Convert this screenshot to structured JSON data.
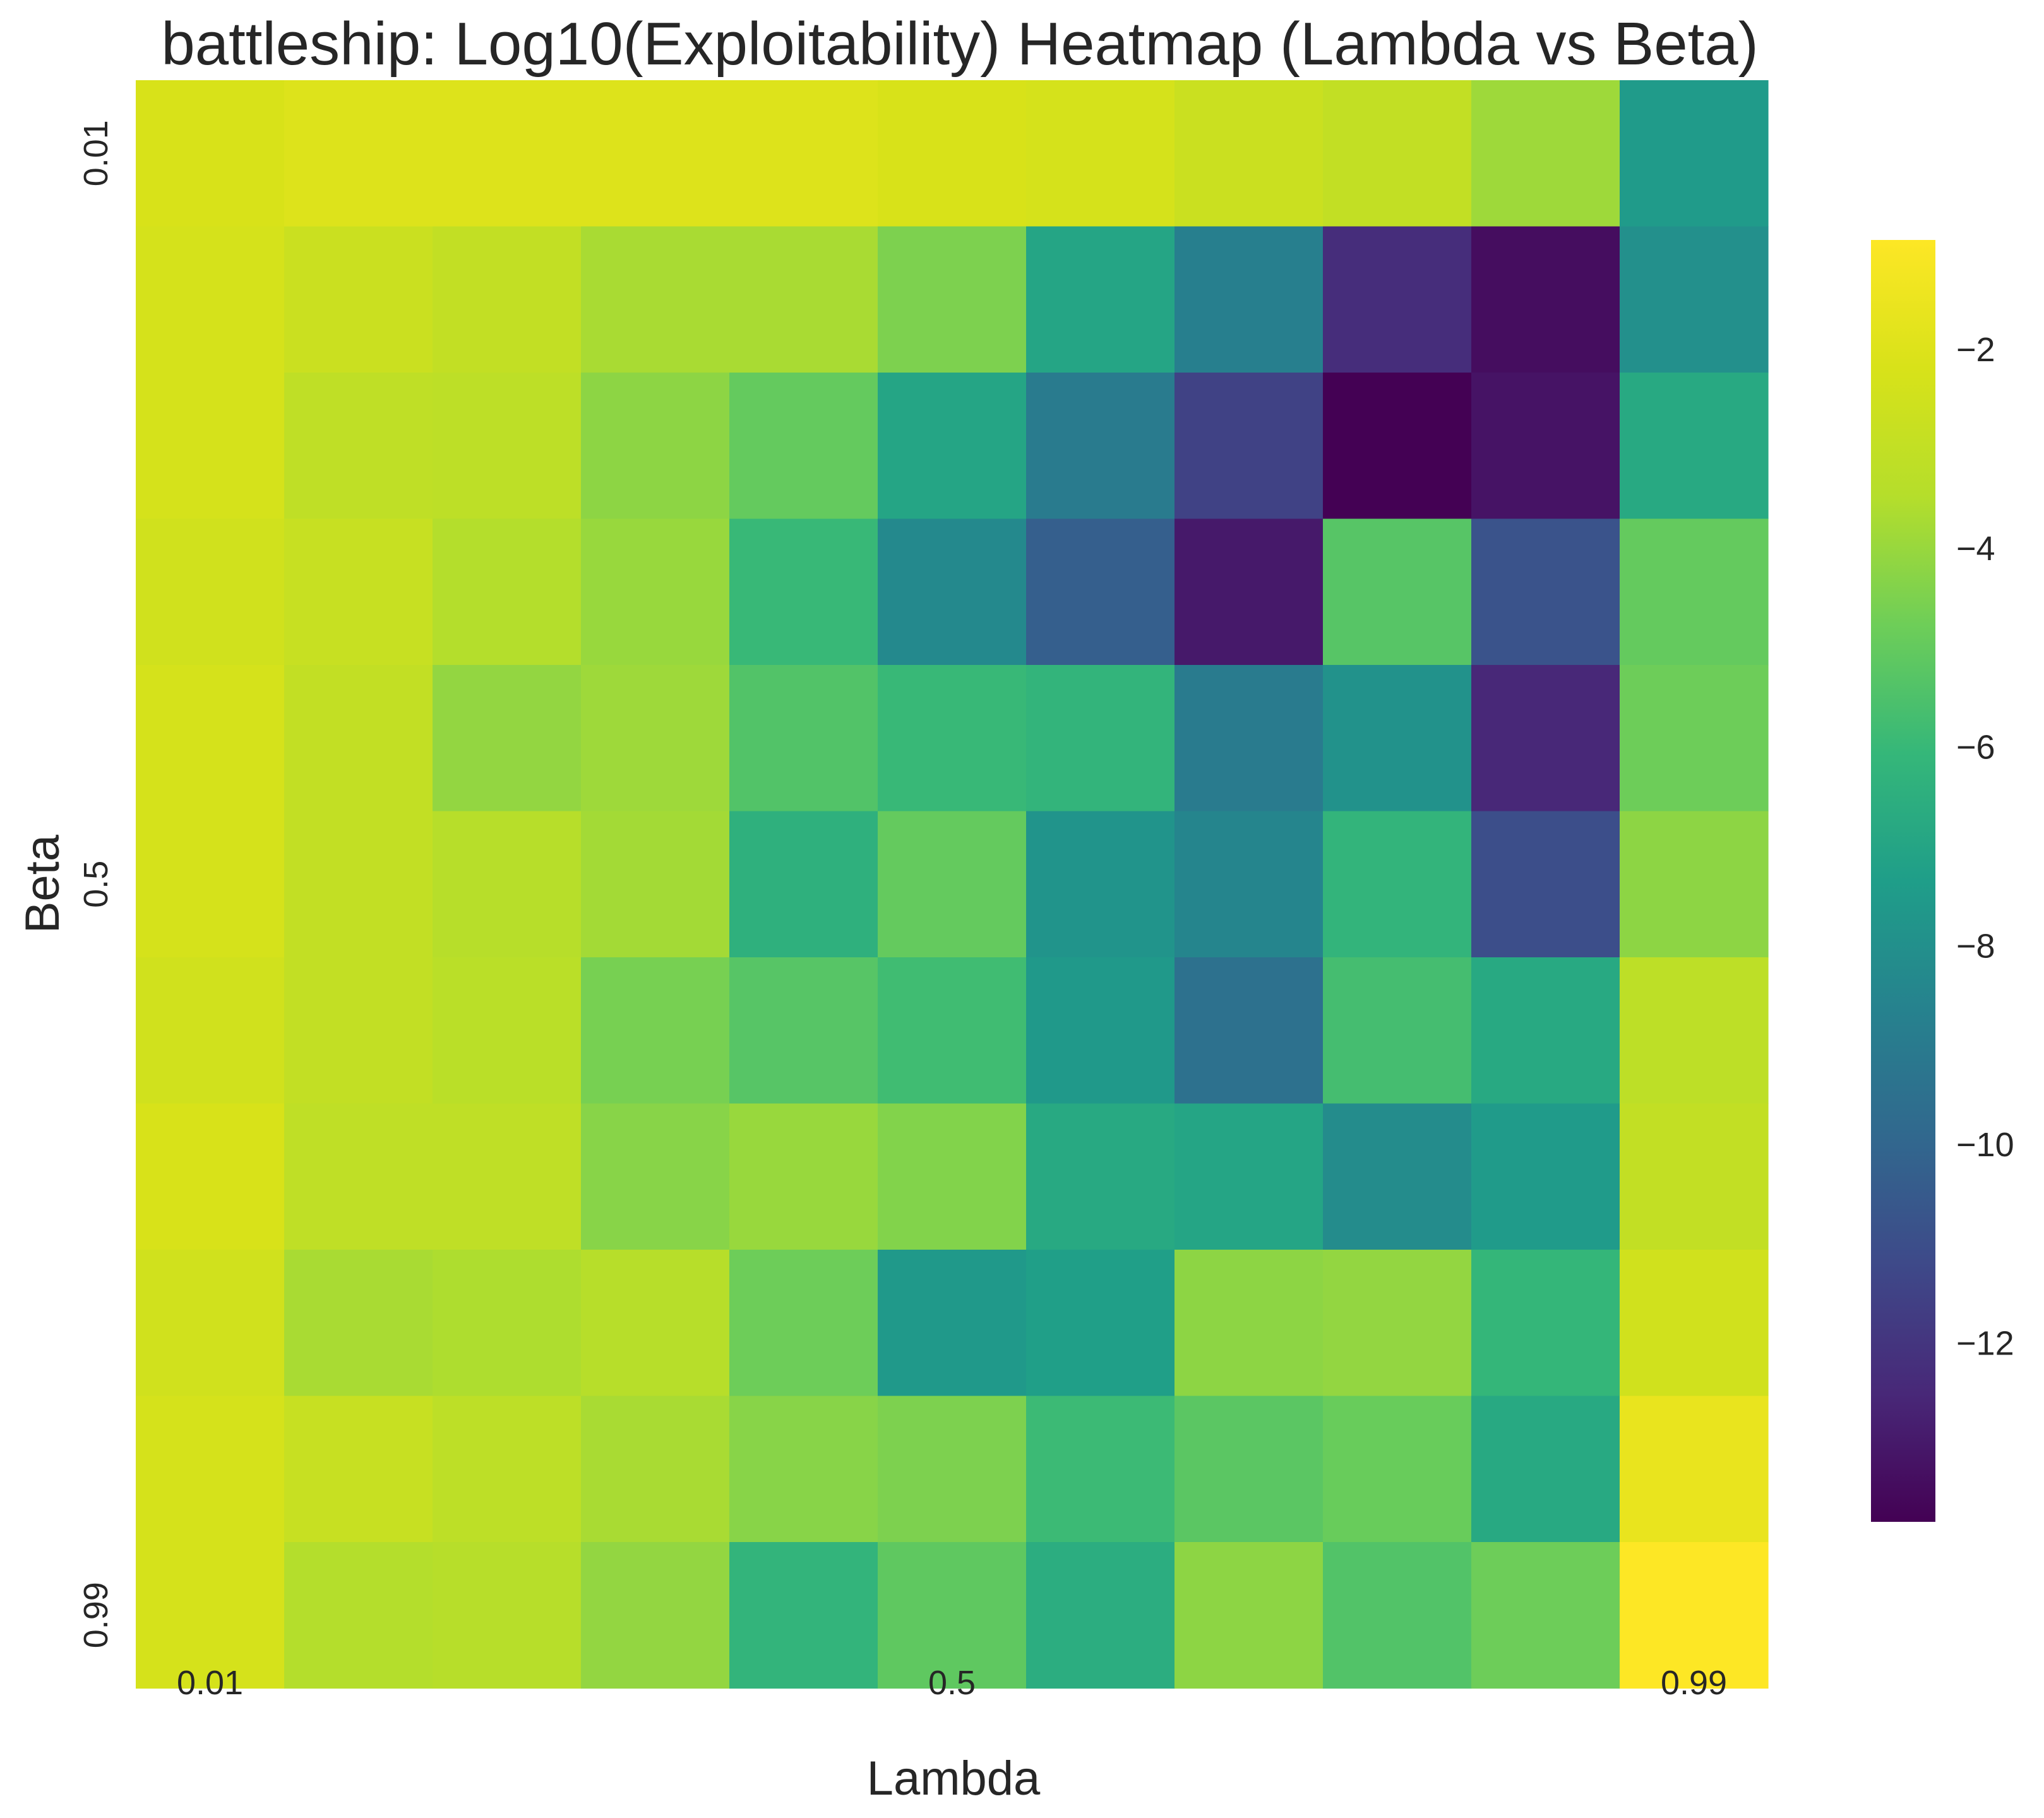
{
  "chart_data": {
    "type": "heatmap",
    "title": "battleship: Log10(Exploitability) Heatmap (Lambda vs Beta)",
    "xlabel": "Lambda",
    "ylabel": "Beta",
    "x_tick_labels": [
      "0.01",
      "0.5",
      "0.99"
    ],
    "y_tick_labels": [
      "0.01",
      "0.5",
      "0.99"
    ],
    "colorbar_ticks": [
      -2,
      -4,
      -6,
      -8,
      -10,
      -12
    ],
    "colorbar_ticks_text": [
      "−2",
      "−4",
      "−6",
      "−8",
      "−10",
      "−12"
    ],
    "colorbar_range": [
      -13.8,
      -0.9
    ],
    "colormap": "viridis",
    "grid": false,
    "rows": 11,
    "cols": 11,
    "values": [
      [
        -2.2,
        -2.0,
        -2.0,
        -2.0,
        -2.0,
        -2.2,
        -2.3,
        -2.7,
        -3.0,
        -3.9,
        -7.5
      ],
      [
        -2.3,
        -2.7,
        -3.0,
        -3.7,
        -3.7,
        -4.5,
        -7.0,
        -8.8,
        -12.3,
        -13.4,
        -8.0
      ],
      [
        -2.3,
        -3.1,
        -3.2,
        -4.2,
        -5.0,
        -7.0,
        -9.0,
        -11.5,
        -13.9,
        -13.2,
        -6.8
      ],
      [
        -2.5,
        -2.8,
        -3.5,
        -4.0,
        -6.0,
        -8.3,
        -10.3,
        -13.0,
        -5.3,
        -10.8,
        -5.0
      ],
      [
        -2.3,
        -3.0,
        -4.1,
        -3.9,
        -5.4,
        -6.0,
        -6.2,
        -9.0,
        -7.9,
        -12.5,
        -4.8
      ],
      [
        -2.3,
        -3.0,
        -3.4,
        -3.8,
        -6.4,
        -5.0,
        -7.8,
        -8.5,
        -6.2,
        -11.0,
        -4.2
      ],
      [
        -2.5,
        -3.0,
        -3.3,
        -4.6,
        -5.3,
        -5.8,
        -7.6,
        -9.5,
        -5.7,
        -6.8,
        -3.2
      ],
      [
        -2.2,
        -3.1,
        -3.1,
        -4.3,
        -4.0,
        -4.4,
        -6.8,
        -7.0,
        -8.2,
        -7.5,
        -3.0
      ],
      [
        -2.5,
        -3.7,
        -3.6,
        -3.4,
        -4.8,
        -7.6,
        -7.3,
        -4.2,
        -4.1,
        -6.1,
        -2.5
      ],
      [
        -2.3,
        -2.8,
        -3.2,
        -3.7,
        -4.3,
        -4.5,
        -5.9,
        -5.2,
        -4.9,
        -6.8,
        -1.6
      ],
      [
        -2.3,
        -3.5,
        -3.4,
        -4.1,
        -6.2,
        -5.1,
        -6.6,
        -4.2,
        -5.4,
        -4.8,
        -0.9
      ]
    ]
  }
}
